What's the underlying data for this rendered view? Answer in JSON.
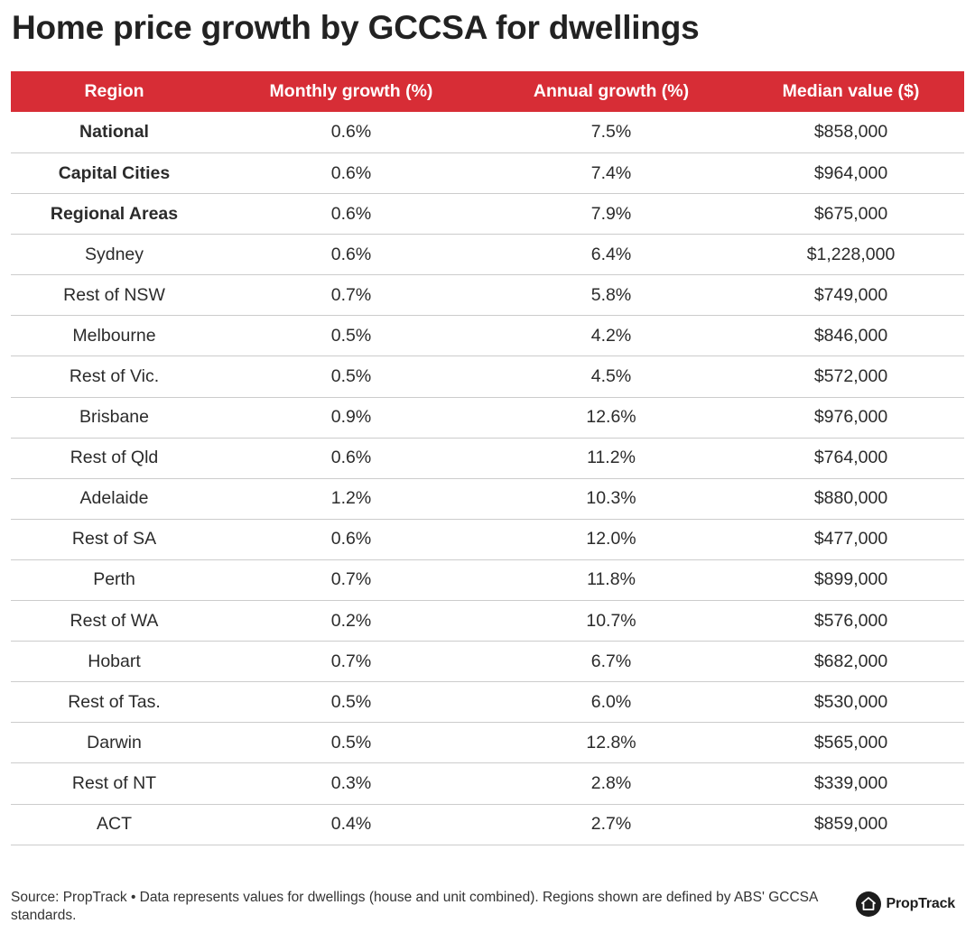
{
  "title": "Home price growth by GCCSA for dwellings",
  "chart_data": {
    "type": "table",
    "title": "Home price growth by GCCSA for dwellings",
    "columns": [
      "Region",
      "Monthly growth (%)",
      "Annual growth (%)",
      "Median value ($)"
    ],
    "rows": [
      {
        "region": "National",
        "monthly": "0.6%",
        "annual": "7.5%",
        "median": "$858,000",
        "bold": true
      },
      {
        "region": "Capital Cities",
        "monthly": "0.6%",
        "annual": "7.4%",
        "median": "$964,000",
        "bold": true
      },
      {
        "region": "Regional Areas",
        "monthly": "0.6%",
        "annual": "7.9%",
        "median": "$675,000",
        "bold": true
      },
      {
        "region": "Sydney",
        "monthly": "0.6%",
        "annual": "6.4%",
        "median": "$1,228,000",
        "bold": false
      },
      {
        "region": "Rest of NSW",
        "monthly": "0.7%",
        "annual": "5.8%",
        "median": "$749,000",
        "bold": false
      },
      {
        "region": "Melbourne",
        "monthly": "0.5%",
        "annual": "4.2%",
        "median": "$846,000",
        "bold": false
      },
      {
        "region": "Rest of Vic.",
        "monthly": "0.5%",
        "annual": "4.5%",
        "median": "$572,000",
        "bold": false
      },
      {
        "region": "Brisbane",
        "monthly": "0.9%",
        "annual": "12.6%",
        "median": "$976,000",
        "bold": false
      },
      {
        "region": "Rest of Qld",
        "monthly": "0.6%",
        "annual": "11.2%",
        "median": "$764,000",
        "bold": false
      },
      {
        "region": "Adelaide",
        "monthly": "1.2%",
        "annual": "10.3%",
        "median": "$880,000",
        "bold": false
      },
      {
        "region": "Rest of SA",
        "monthly": "0.6%",
        "annual": "12.0%",
        "median": "$477,000",
        "bold": false
      },
      {
        "region": "Perth",
        "monthly": "0.7%",
        "annual": "11.8%",
        "median": "$899,000",
        "bold": false
      },
      {
        "region": "Rest of WA",
        "monthly": "0.2%",
        "annual": "10.7%",
        "median": "$576,000",
        "bold": false
      },
      {
        "region": "Hobart",
        "monthly": "0.7%",
        "annual": "6.7%",
        "median": "$682,000",
        "bold": false
      },
      {
        "region": "Rest of Tas.",
        "monthly": "0.5%",
        "annual": "6.0%",
        "median": "$530,000",
        "bold": false
      },
      {
        "region": "Darwin",
        "monthly": "0.5%",
        "annual": "12.8%",
        "median": "$565,000",
        "bold": false
      },
      {
        "region": "Rest of NT",
        "monthly": "0.3%",
        "annual": "2.8%",
        "median": "$339,000",
        "bold": false
      },
      {
        "region": "ACT",
        "monthly": "0.4%",
        "annual": "2.7%",
        "median": "$859,000",
        "bold": false
      }
    ]
  },
  "footer": {
    "source": "Source: PropTrack • Data represents values for dwellings (house and unit combined). Regions shown are defined by ABS' GCCSA standards."
  },
  "brand": {
    "name": "PropTrack",
    "icon": "house-icon"
  },
  "colors": {
    "header_bg": "#d72d36",
    "header_text": "#ffffff",
    "row_border": "#cccccc"
  }
}
